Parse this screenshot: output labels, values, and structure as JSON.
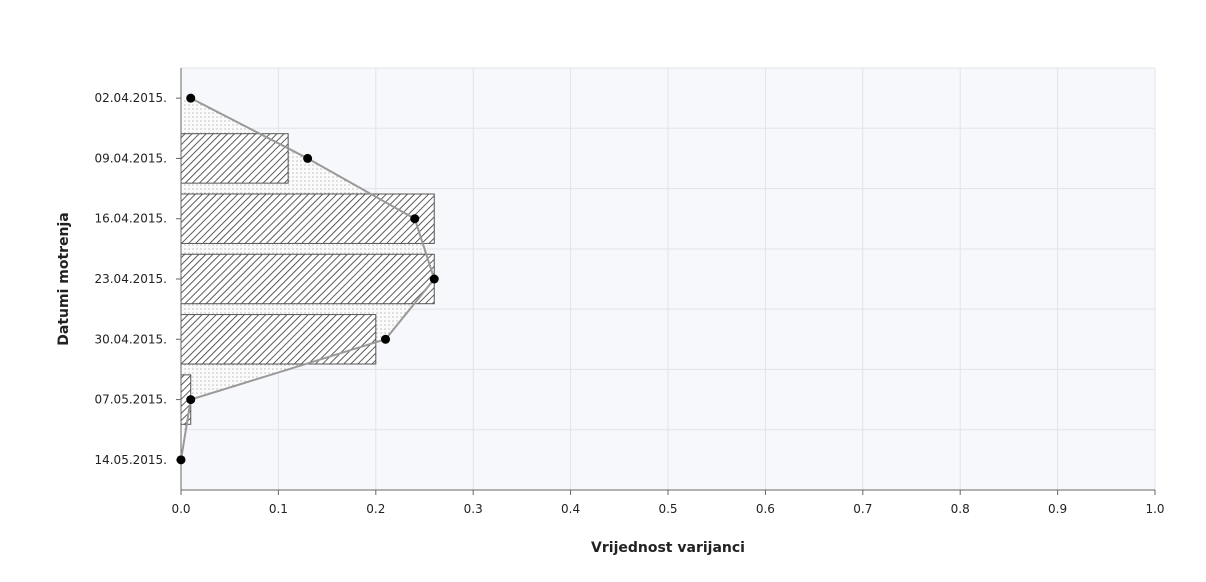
{
  "chart_data": {
    "type": "bar",
    "orientation": "horizontal",
    "categories": [
      "02.04.2015.",
      "09.04.2015.",
      "16.04.2015.",
      "23.04.2015.",
      "30.04.2015.",
      "07.05.2015.",
      "14.05.2015."
    ],
    "series": [
      {
        "type": "bar",
        "fill": "diagonal-hatch",
        "values": [
          0.0,
          0.11,
          0.26,
          0.26,
          0.2,
          0.01,
          0.0
        ]
      },
      {
        "type": "line-area",
        "fill": "dotted",
        "values": [
          0.01,
          0.13,
          0.24,
          0.26,
          0.21,
          0.01,
          0.0
        ]
      }
    ],
    "xlabel": "Vrijednost varijanci",
    "ylabel": "Datumi motrenja",
    "xlim": [
      0,
      1
    ],
    "xticks": [
      "0.0",
      "0.1",
      "0.2",
      "0.3",
      "0.4",
      "0.5",
      "0.6",
      "0.7",
      "0.8",
      "0.9",
      "1.0"
    ],
    "grid": true,
    "legend": "none",
    "colors": {
      "background": "#f7f8fb",
      "grid": "#e2e4ea",
      "line": "#999999",
      "marker": "#000000",
      "bar_stroke": "#555555"
    }
  }
}
